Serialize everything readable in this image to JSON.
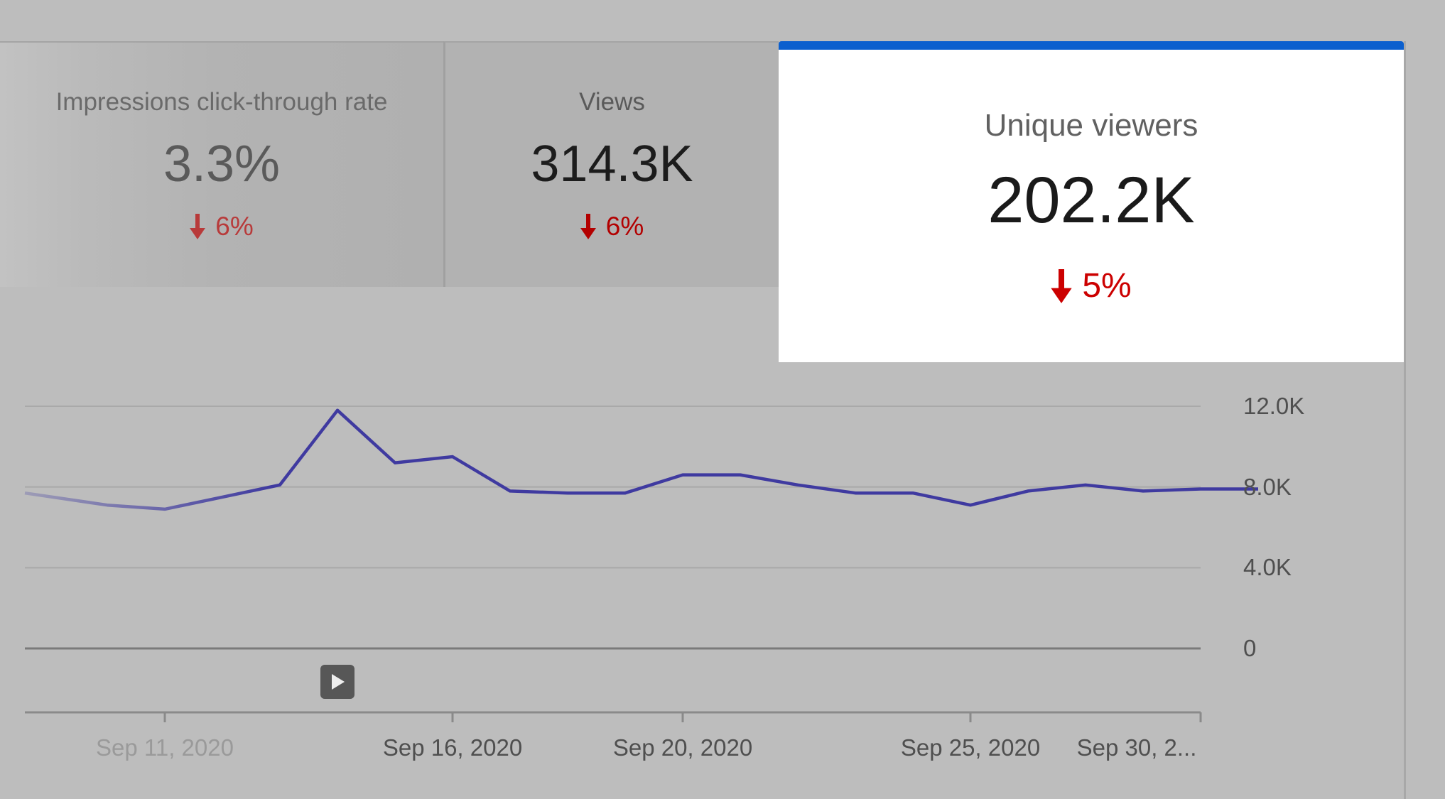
{
  "metric_tabs": [
    {
      "title": "Impressions click-through rate",
      "value": "3.3%",
      "change": "6%",
      "direction": "down",
      "selected": false
    },
    {
      "title": "Views",
      "value": "314.3K",
      "change": "6%",
      "direction": "down",
      "selected": false
    },
    {
      "title": "Unique viewers",
      "value": "202.2K",
      "change": "5%",
      "direction": "down",
      "selected": true
    }
  ],
  "colors": {
    "accent": "#0b5fce",
    "line": "#3f3aa0",
    "negative": "#cc0000"
  },
  "chart_data": {
    "type": "line",
    "title": "",
    "xlabel": "",
    "ylabel": "",
    "ylim": [
      0,
      12000
    ],
    "y_ticks": [
      "12.0K",
      "8.0K",
      "4.0K",
      "0"
    ],
    "y_tick_values": [
      12000,
      8000,
      4000,
      0
    ],
    "x_tick_labels": [
      "Sep 11, 2020",
      "Sep 16, 2020",
      "Sep 20, 2020",
      "Sep 25, 2020",
      "Sep 30, 2..."
    ],
    "x_tick_dates": [
      "2020-09-11",
      "2020-09-16",
      "2020-09-20",
      "2020-09-25",
      "2020-09-30"
    ],
    "grid": true,
    "series": [
      {
        "x": [
          "2020-09-09",
          "2020-09-10",
          "2020-09-11",
          "2020-09-12",
          "2020-09-13",
          "2020-09-14",
          "2020-09-15",
          "2020-09-16",
          "2020-09-17",
          "2020-09-18",
          "2020-09-19",
          "2020-09-20",
          "2020-09-21",
          "2020-09-22",
          "2020-09-23",
          "2020-09-24",
          "2020-09-25",
          "2020-09-26",
          "2020-09-27",
          "2020-09-28",
          "2020-09-29",
          "2020-09-30"
        ],
        "values": [
          7700,
          7100,
          6900,
          7500,
          8100,
          11800,
          9200,
          9500,
          7800,
          7700,
          7700,
          8600,
          8600,
          8100,
          7700,
          7700,
          7100,
          7800,
          8100,
          7800,
          7900,
          7900
        ]
      }
    ],
    "markers": [
      {
        "type": "video-published",
        "date": "2020-09-14"
      }
    ]
  }
}
